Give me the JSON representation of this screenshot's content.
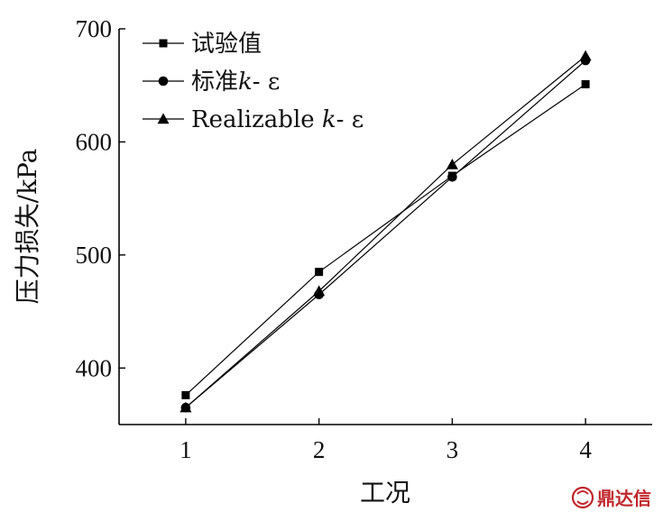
{
  "chart_data": {
    "type": "line",
    "xlabel": "工况",
    "ylabel": "压力损失/kPa",
    "x": [
      1,
      2,
      3,
      4
    ],
    "xlim": [
      0.5,
      4.5
    ],
    "ylim": [
      350,
      700
    ],
    "yticks": [
      400,
      500,
      600,
      700
    ],
    "xticks": [
      1,
      2,
      3,
      4
    ],
    "grid": false,
    "legend_position": "top-left",
    "series": [
      {
        "name": "试验值",
        "marker": "square",
        "values": [
          376,
          485,
          570,
          651
        ]
      },
      {
        "name": "标准k- ε",
        "marker": "circle",
        "values": [
          365,
          465,
          569,
          672
        ]
      },
      {
        "name": "Realizable k- ε",
        "marker": "triangle",
        "values": [
          365,
          468,
          580,
          676
        ]
      }
    ],
    "legend_labels": [
      {
        "prefix": "试验值",
        "k": "",
        "suffix": ""
      },
      {
        "prefix": "标准",
        "k": "k",
        "suffix": "- ε"
      },
      {
        "prefix": "Realizable ",
        "k": "k",
        "suffix": "- ε"
      }
    ],
    "line_color": "#000000"
  },
  "watermark": {
    "text": "鼎达信"
  }
}
